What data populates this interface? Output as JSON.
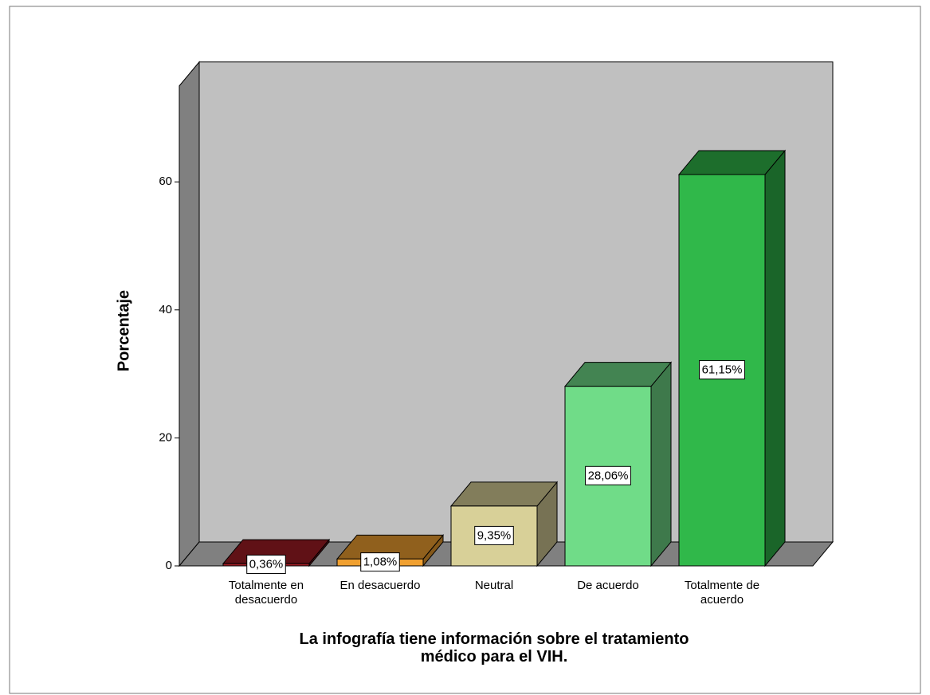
{
  "chart_data": {
    "type": "bar3d",
    "categories": [
      "Totalmente en desacuerdo",
      "En desacuerdo",
      "Neutral",
      "De acuerdo",
      "Totalmente de acuerdo"
    ],
    "values": [
      0.36,
      1.08,
      9.35,
      28.06,
      61.15
    ],
    "value_labels": [
      "0,36%",
      "1,08%",
      "9,35%",
      "28,06%",
      "61,15%"
    ],
    "colors": [
      "#a01c24",
      "#f0a030",
      "#d8d098",
      "#70dc88",
      "#30b84a"
    ],
    "y_label": "Porcentaje",
    "x_label": [
      "La infografía tiene información sobre el tratamiento",
      "médico para el VIH."
    ],
    "ylim": [
      0,
      75
    ],
    "yticks": [
      0,
      20,
      40,
      60
    ]
  }
}
